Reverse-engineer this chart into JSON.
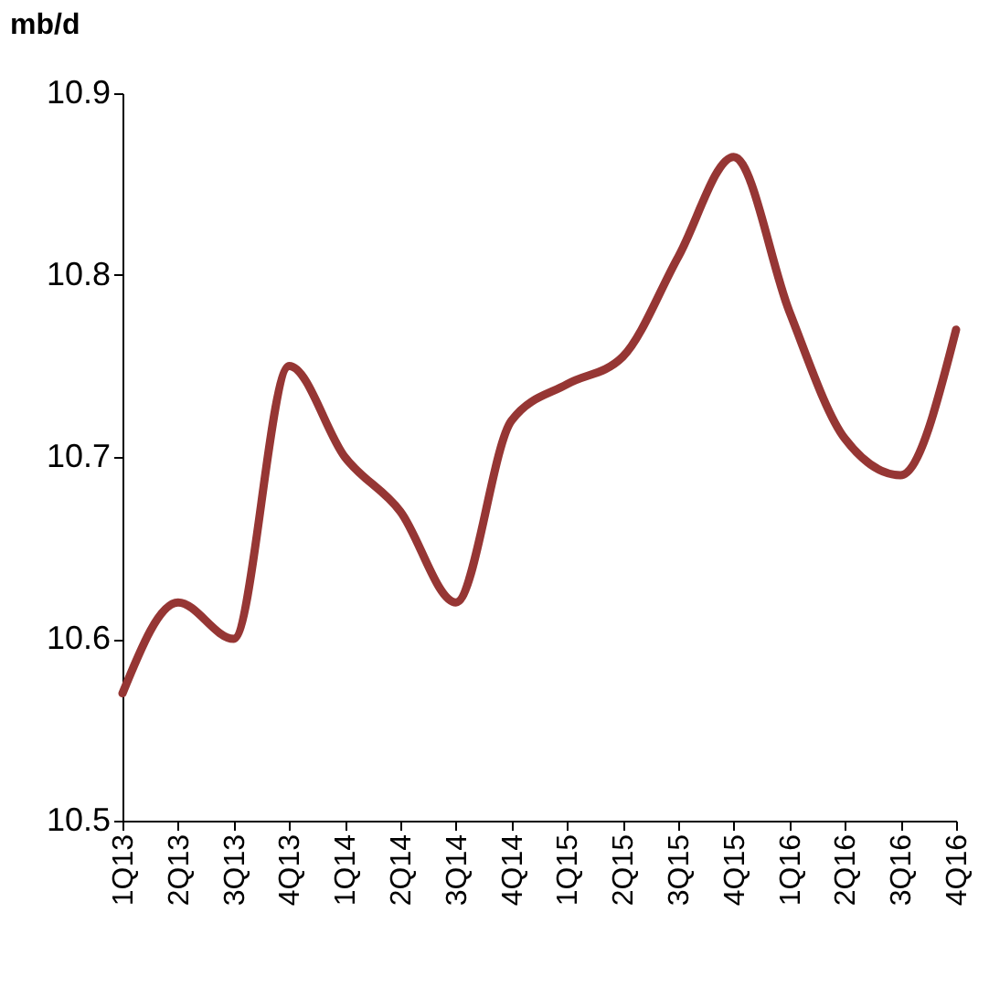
{
  "chart_data": {
    "type": "line",
    "ylabel": "mb/d",
    "categories": [
      "1Q13",
      "2Q13",
      "3Q13",
      "4Q13",
      "1Q14",
      "2Q14",
      "3Q14",
      "4Q14",
      "1Q15",
      "2Q15",
      "3Q15",
      "4Q15",
      "1Q16",
      "2Q16",
      "3Q16",
      "4Q16"
    ],
    "series": [
      {
        "color": "#963634",
        "values": [
          10.57,
          10.62,
          10.6,
          10.75,
          10.7,
          10.67,
          10.62,
          10.72,
          10.74,
          10.755,
          10.81,
          10.865,
          10.78,
          10.71,
          10.69,
          10.77
        ]
      }
    ],
    "ylim": [
      10.5,
      10.9
    ],
    "yticks": [
      10.5,
      10.6,
      10.7,
      10.8,
      10.9
    ],
    "grid": false,
    "legend": false,
    "marker": "none",
    "line_style": "solid"
  }
}
